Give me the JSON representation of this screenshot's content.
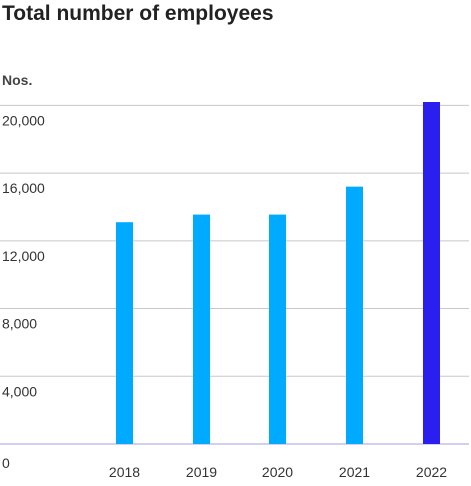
{
  "chart_data": {
    "type": "bar",
    "title": "Total number of employees",
    "ylabel": "Nos.",
    "xlabel": "",
    "categories": [
      "2018",
      "2019",
      "2020",
      "2021",
      "2022"
    ],
    "values": [
      13100,
      13550,
      13550,
      15200,
      20200
    ],
    "ylim": [
      0,
      20200
    ],
    "yticks": [
      0,
      4000,
      8000,
      12000,
      16000,
      20000
    ],
    "ytick_labels": [
      "0",
      "4,000",
      "8,000",
      "12,000",
      "16,000",
      "20,000"
    ],
    "grid": true,
    "legend": "none",
    "colors": {
      "default_bar": "#00aaff",
      "highlight_bar": "#2b1ff0",
      "grid": "#c8c8c8",
      "baseline": "#b8b4e8"
    },
    "highlight_index": 4
  }
}
